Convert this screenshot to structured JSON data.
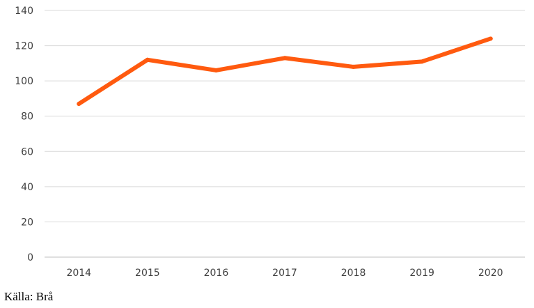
{
  "chart_data": {
    "type": "line",
    "categories": [
      "2014",
      "2015",
      "2016",
      "2017",
      "2018",
      "2019",
      "2020"
    ],
    "series": [
      {
        "values": [
          87,
          112,
          106,
          113,
          108,
          111,
          124
        ]
      }
    ],
    "ylim": [
      0,
      140
    ],
    "yticks": [
      0,
      20,
      40,
      60,
      80,
      100,
      120,
      140
    ],
    "grid": true,
    "legend": "none",
    "colors": {
      "line": "#FF5A0F",
      "grid": "#d9d9d9",
      "axis": "#bfbfbf"
    }
  },
  "source": "Källa: Brå"
}
